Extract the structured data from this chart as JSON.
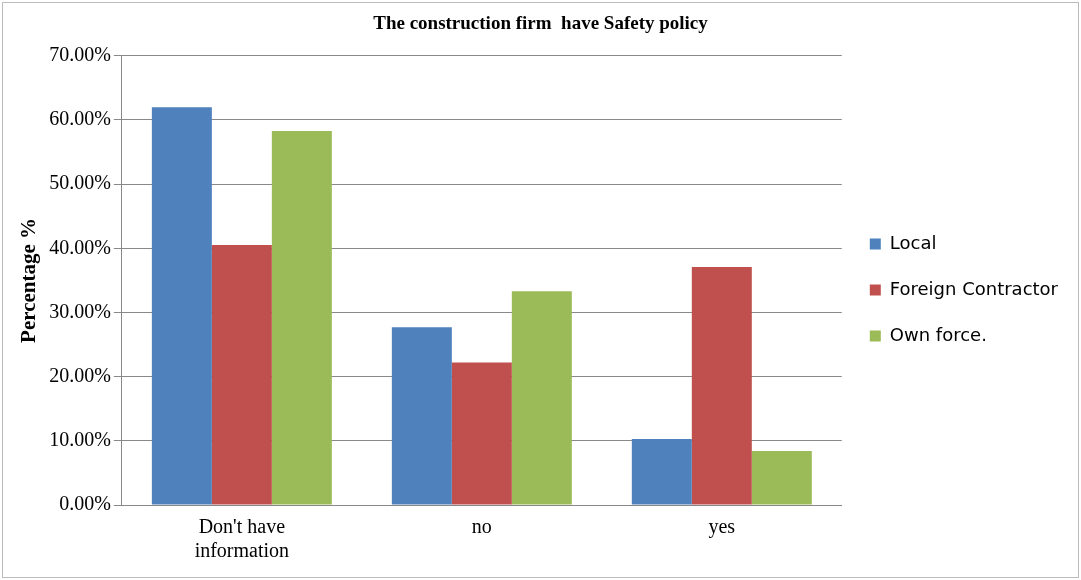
{
  "chart_data": {
    "type": "bar",
    "title": "The construction firm  have Safety policy",
    "ylabel": "Percentage %",
    "categories": [
      "Don't have information",
      "no",
      "yes"
    ],
    "series": [
      {
        "name": "Local",
        "color": "#4f81bd",
        "values": [
          62.0,
          27.7,
          10.3
        ]
      },
      {
        "name": "Foreign Contractor",
        "color": "#c0504d",
        "values": [
          40.5,
          22.2,
          37.1
        ]
      },
      {
        "name": "Own force.",
        "color": "#9bbb59",
        "values": [
          58.3,
          33.3,
          8.4
        ]
      }
    ],
    "ylim": [
      0,
      70
    ],
    "yticks": [
      {
        "value": 0,
        "label": "0.00%"
      },
      {
        "value": 10,
        "label": "10.00%"
      },
      {
        "value": 20,
        "label": "20.00%"
      },
      {
        "value": 30,
        "label": "30.00%"
      },
      {
        "value": 40,
        "label": "40.00%"
      },
      {
        "value": 50,
        "label": "50.00%"
      },
      {
        "value": 60,
        "label": "60.00%"
      },
      {
        "value": 70,
        "label": "70.00%"
      }
    ],
    "grid": "y",
    "legend": "right"
  }
}
